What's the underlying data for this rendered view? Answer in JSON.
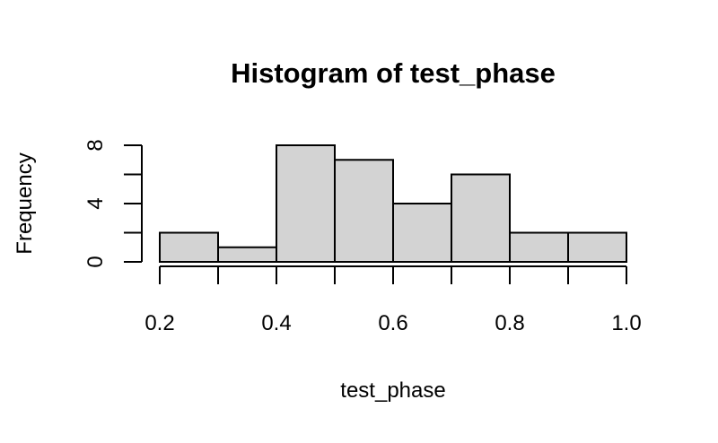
{
  "chart_data": {
    "type": "bar",
    "title": "Histogram of test_phase",
    "xlabel": "test_phase",
    "ylabel": "Frequency",
    "bins": [
      {
        "from": 0.2,
        "to": 0.3,
        "count": 2
      },
      {
        "from": 0.3,
        "to": 0.4,
        "count": 1
      },
      {
        "from": 0.4,
        "to": 0.5,
        "count": 8
      },
      {
        "from": 0.5,
        "to": 0.6,
        "count": 7
      },
      {
        "from": 0.6,
        "to": 0.7,
        "count": 4
      },
      {
        "from": 0.7,
        "to": 0.8,
        "count": 6
      },
      {
        "from": 0.8,
        "to": 0.9,
        "count": 2
      },
      {
        "from": 0.9,
        "to": 1.0,
        "count": 2
      }
    ],
    "xlim": [
      0.2,
      1.0
    ],
    "ylim": [
      0,
      8
    ],
    "x_ticks": [
      "0.2",
      "0.4",
      "0.6",
      "0.8",
      "1.0"
    ],
    "y_ticks": [
      "0",
      "4",
      "8"
    ],
    "bar_color": "#d3d3d3",
    "grid": false
  }
}
